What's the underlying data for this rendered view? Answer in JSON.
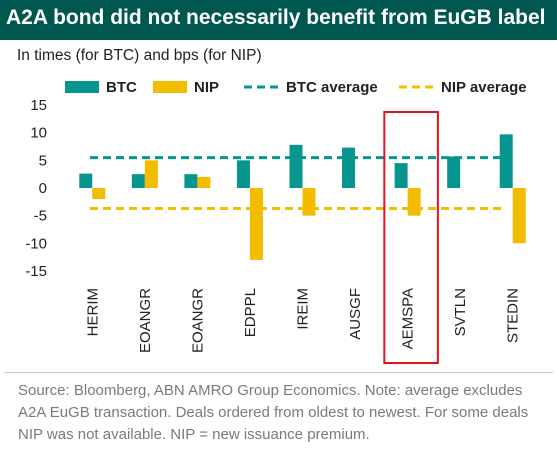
{
  "header": {
    "title": "A2A bond did not necessarily benefit from EuGB label"
  },
  "subtitle": "In times (for BTC) and bps (for NIP)",
  "source_note": "Source: Bloomberg, ABN AMRO Group Economics. Note: average excludes A2A EuGB transaction. Deals ordered from oldest to newest. For some deals NIP was not available. NIP = new issuance premium.",
  "colors": {
    "header": "#00574f",
    "btc": "#06968f",
    "nip": "#f2bd00",
    "highlight": "#e0141e"
  },
  "chart_data": {
    "type": "bar",
    "categories": [
      "HERIM",
      "EOANGR",
      "EOANGR",
      "EDPPL",
      "IREIM",
      "AUSGF",
      "AEMSPA",
      "SVTLN",
      "STEDIN"
    ],
    "series": [
      {
        "name": "BTC",
        "values": [
          2.6,
          2.5,
          2.5,
          5.0,
          7.8,
          7.3,
          4.5,
          5.7,
          9.7
        ]
      },
      {
        "name": "NIP",
        "values": [
          -2.0,
          5.0,
          2.0,
          -13.0,
          -5.0,
          null,
          -5.0,
          null,
          -10.0
        ]
      }
    ],
    "reference_lines": [
      {
        "name": "BTC average",
        "value": 5.5
      },
      {
        "name": "NIP average",
        "value": -3.7
      }
    ],
    "highlighted_category": "AEMSPA",
    "ylim": [
      -15,
      15
    ],
    "yticks": [
      15,
      10,
      5,
      0,
      -5,
      -10,
      -15
    ],
    "legend": "top",
    "grid": false
  }
}
